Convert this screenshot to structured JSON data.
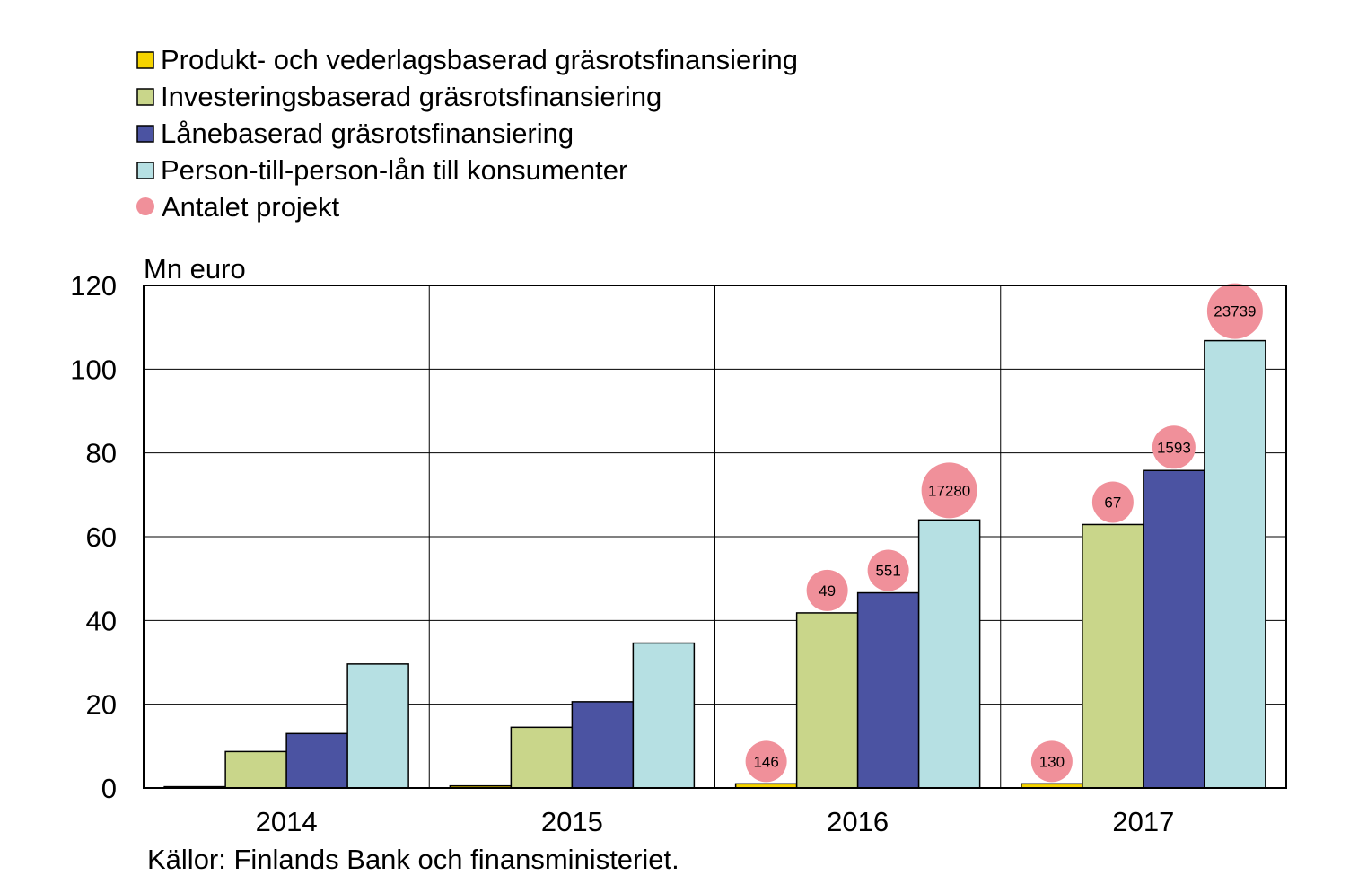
{
  "chart_data": {
    "type": "bar",
    "categories": [
      "2014",
      "2015",
      "2016",
      "2017"
    ],
    "ylabel": "Mn euro",
    "ylim": [
      0,
      120
    ],
    "yticks": [
      0,
      20,
      40,
      60,
      80,
      100,
      120
    ],
    "grid": true,
    "legend_position": "top-left",
    "series": [
      {
        "name": "Produkt- och vederlagsbaserad gräsrotsfinansiering",
        "color": "#f5d400",
        "values": [
          0.3,
          0.5,
          1.0,
          1.0
        ]
      },
      {
        "name": "Investeringsbaserad gräsrotsfinansiering",
        "color": "#c9d68a",
        "values": [
          8.7,
          14.5,
          41.8,
          62.9
        ]
      },
      {
        "name": "Lånebaserad gräsrotsfinansiering",
        "color": "#4b53a2",
        "values": [
          13.0,
          20.6,
          46.6,
          75.8
        ]
      },
      {
        "name": "Person-till-person-lån till konsumenter",
        "color": "#b6e0e3",
        "values": [
          29.6,
          34.6,
          64.0,
          106.8
        ]
      }
    ],
    "projects": {
      "name": "Antalet projekt",
      "color": "#f0909a",
      "values": [
        [
          null,
          null,
          null,
          null
        ],
        [
          null,
          null,
          null,
          null
        ],
        [
          "146",
          "49",
          "551",
          "17280"
        ],
        [
          "130",
          "67",
          "1593",
          "23739"
        ]
      ]
    },
    "source": "Källor: Finlands Bank och finansministeriet."
  }
}
